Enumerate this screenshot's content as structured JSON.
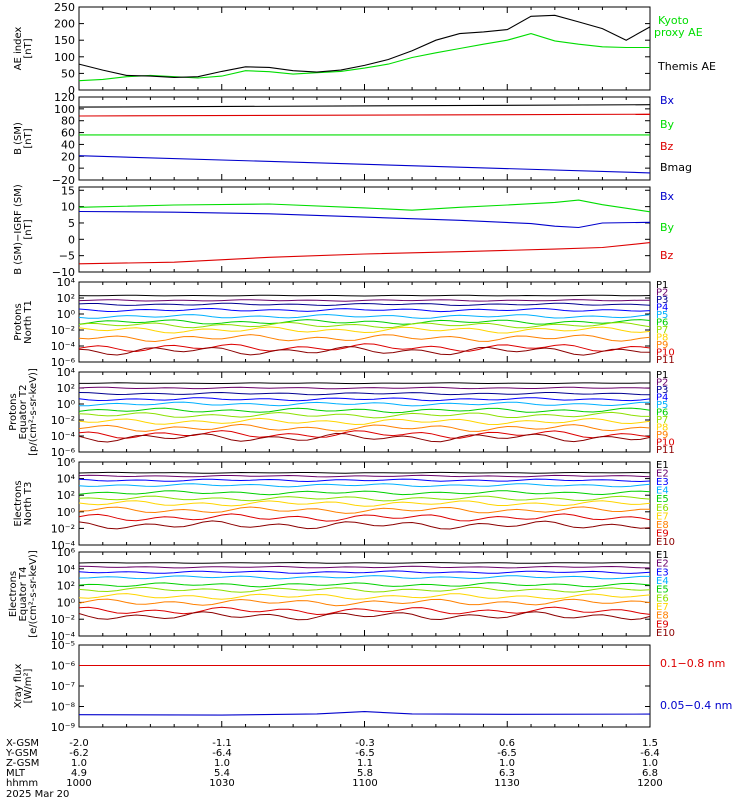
{
  "chart_data": {
    "type": "line",
    "title": "",
    "date_label": "2025 Mar 20",
    "x_time_ticks": [
      "1000",
      "1030",
      "1100",
      "1130",
      "1200"
    ],
    "orbit_rows": [
      {
        "label": "X-GSM",
        "values": [
          "-2.0",
          "-1.1",
          "-0.3",
          "0.6",
          "1.5"
        ]
      },
      {
        "label": "Y-GSM",
        "values": [
          "-6.2",
          "-6.4",
          "-6.5",
          "-6.5",
          "-6.4"
        ]
      },
      {
        "label": "Z-GSM",
        "values": [
          "1.0",
          "1.0",
          "1.1",
          "1.0",
          "1.0"
        ]
      },
      {
        "label": "MLT",
        "values": [
          "4.9",
          "5.4",
          "5.8",
          "6.3",
          "6.8"
        ]
      },
      {
        "label": "hhmm",
        "values": [
          "1000",
          "1030",
          "1100",
          "1130",
          "1200"
        ]
      }
    ],
    "panels": [
      {
        "id": "ae",
        "ylabel": [
          "AE index",
          "[nT]"
        ],
        "scale": "linear",
        "ylim": [
          0,
          250
        ],
        "yticks": [
          "0",
          "50",
          "100",
          "150",
          "200",
          "250"
        ],
        "ytick_values": [
          0,
          50,
          100,
          150,
          200,
          250
        ],
        "series": [
          {
            "name": "Kyoto proxy AE",
            "color": "#00dd00",
            "x": [
              0,
              5,
              10,
              15,
              20,
              25,
              30,
              35,
              40,
              45,
              50,
              55,
              60,
              65,
              70,
              75,
              80,
              85,
              90,
              95,
              100,
              105,
              110,
              115,
              120
            ],
            "y": [
              28,
              32,
              40,
              44,
              40,
              36,
              42,
              58,
              55,
              48,
              52,
              56,
              66,
              78,
              98,
              112,
              125,
              138,
              150,
              170,
              148,
              138,
              130,
              128,
              128
            ]
          },
          {
            "name": "Themis AE",
            "color": "#000000",
            "x": [
              0,
              5,
              10,
              15,
              20,
              25,
              30,
              35,
              40,
              45,
              50,
              55,
              60,
              65,
              70,
              75,
              80,
              85,
              90,
              95,
              100,
              105,
              110,
              115,
              120
            ],
            "y": [
              78,
              60,
              44,
              42,
              38,
              40,
              56,
              70,
              68,
              58,
              54,
              60,
              74,
              92,
              118,
              150,
              170,
              175,
              182,
              222,
              225,
              205,
              185,
              150,
              190
            ]
          }
        ],
        "legend": [
          "Kyoto",
          "proxy AE",
          "Themis AE"
        ]
      },
      {
        "id": "b",
        "ylabel": [
          "B (SM)",
          "[nT]"
        ],
        "scale": "linear",
        "ylim": [
          -20,
          120
        ],
        "yticks": [
          "−20",
          "0",
          "20",
          "40",
          "60",
          "80",
          "100",
          "120"
        ],
        "ytick_values": [
          -20,
          0,
          20,
          40,
          60,
          80,
          100,
          120
        ],
        "series": [
          {
            "name": "Bx",
            "color": "#0000cc",
            "x": [
              0,
              120
            ],
            "y": [
              21,
              -8
            ]
          },
          {
            "name": "By",
            "color": "#00dd00",
            "x": [
              0,
              120
            ],
            "y": [
              56,
              56
            ]
          },
          {
            "name": "Bz",
            "color": "#dd0000",
            "x": [
              0,
              120
            ],
            "y": [
              88,
              91
            ]
          },
          {
            "name": "Bmag",
            "color": "#000000",
            "x": [
              0,
              120
            ],
            "y": [
              103,
              107
            ]
          }
        ]
      },
      {
        "id": "dbigrf",
        "ylabel": [
          "B (SM)−IGRF (SM)",
          "[nT]"
        ],
        "scale": "linear",
        "ylim": [
          -10,
          16
        ],
        "yticks": [
          "−10",
          "−5",
          "0",
          "5",
          "10",
          "15"
        ],
        "ytick_values": [
          -10,
          -5,
          0,
          5,
          10,
          15
        ],
        "series": [
          {
            "name": "Bx",
            "color": "#0000cc",
            "x": [
              0,
              20,
              40,
              60,
              80,
              95,
              100,
              105,
              110,
              120
            ],
            "y": [
              8.5,
              8.3,
              7.8,
              6.8,
              5.8,
              4.8,
              4.0,
              3.6,
              5.0,
              5.2
            ]
          },
          {
            "name": "By",
            "color": "#00dd00",
            "x": [
              0,
              20,
              40,
              60,
              70,
              80,
              90,
              100,
              105,
              110,
              120
            ],
            "y": [
              9.8,
              10.5,
              10.8,
              9.6,
              8.9,
              9.8,
              10.5,
              11.3,
              12.0,
              10.6,
              8.4
            ]
          },
          {
            "name": "Bz",
            "color": "#dd0000",
            "x": [
              0,
              20,
              40,
              60,
              80,
              100,
              110,
              120
            ],
            "y": [
              -7.5,
              -7.0,
              -5.5,
              -4.5,
              -3.8,
              -3.0,
              -2.5,
              -1.0
            ]
          }
        ]
      },
      {
        "id": "p1",
        "ylabel": [
          "Protons",
          "North T1"
        ],
        "scale": "log",
        "ylim": [
          -6,
          4
        ],
        "yticks": [
          "10⁻⁶",
          "10⁻⁴",
          "10⁻²",
          "10⁰",
          "10²",
          "10⁴"
        ],
        "ytick_values": [
          -6,
          -4,
          -2,
          0,
          2,
          4
        ],
        "channels": [
          "P1",
          "P2",
          "P3",
          "P4",
          "P5",
          "P6",
          "P7",
          "P8",
          "P9",
          "P10",
          "P11"
        ],
        "channel_colors": [
          "#000000",
          "#6a006a",
          "#00008f",
          "#0000ff",
          "#00b0ff",
          "#00d000",
          "#8de000",
          "#ffd500",
          "#ff8000",
          "#dd0000",
          "#8b0000"
        ],
        "channel_log_levels": [
          2.3,
          1.7,
          1.2,
          0.5,
          -0.3,
          -1.0,
          -1.4,
          -2.0,
          -3.0,
          -4.2,
          -4.6
        ]
      },
      {
        "id": "p2",
        "ylabel": [
          "Protons",
          "Equator T2",
          "[p/(cm²-s-sr-keV)]"
        ],
        "scale": "log",
        "ylim": [
          -6,
          4
        ],
        "yticks": [
          "10⁻⁶",
          "10⁻⁴",
          "10⁻²",
          "10⁰",
          "10²",
          "10⁴"
        ],
        "ytick_values": [
          -6,
          -4,
          -2,
          0,
          2,
          4
        ],
        "channels": [
          "P1",
          "P2",
          "P3",
          "P4",
          "P5",
          "P6",
          "P7",
          "P8",
          "P9",
          "P10",
          "P11"
        ],
        "channel_colors": [
          "#000000",
          "#6a006a",
          "#00008f",
          "#0000ff",
          "#00b0ff",
          "#00d000",
          "#8de000",
          "#ffd500",
          "#ff8000",
          "#dd0000",
          "#8b0000"
        ],
        "channel_log_levels": [
          2.6,
          2.0,
          1.3,
          0.6,
          0.0,
          -0.8,
          -1.4,
          -2.2,
          -3.0,
          -3.8,
          -4.2
        ]
      },
      {
        "id": "e3",
        "ylabel": [
          "Electrons",
          "North T3"
        ],
        "scale": "log",
        "ylim": [
          -4,
          6
        ],
        "yticks": [
          "10⁻⁴",
          "10⁻²",
          "10⁰",
          "10²",
          "10⁴",
          "10⁶"
        ],
        "ytick_values": [
          -4,
          -2,
          0,
          2,
          4,
          6
        ],
        "channels": [
          "E1",
          "E2",
          "E3",
          "E4",
          "E5",
          "E6",
          "E7",
          "E8",
          "E9",
          "E10"
        ],
        "channel_colors": [
          "#000000",
          "#6a006a",
          "#0000ff",
          "#00b0ff",
          "#00d000",
          "#8de000",
          "#ffd500",
          "#ff8000",
          "#dd0000",
          "#8b0000"
        ],
        "channel_log_levels": [
          4.7,
          4.3,
          3.8,
          3.2,
          2.3,
          1.6,
          1.0,
          0.2,
          -0.7,
          -1.6
        ]
      },
      {
        "id": "e4",
        "ylabel": [
          "Electrons",
          "Equator T4",
          "[e/(cm²-s-sr-keV)]"
        ],
        "scale": "log",
        "ylim": [
          -4,
          6
        ],
        "yticks": [
          "10⁻⁴",
          "10⁻²",
          "10⁰",
          "10²",
          "10⁴",
          "10⁶"
        ],
        "ytick_values": [
          -4,
          -2,
          0,
          2,
          4,
          6
        ],
        "channels": [
          "E1",
          "E2",
          "E3",
          "E4",
          "E5",
          "E6",
          "E7",
          "E8",
          "E9",
          "E10"
        ],
        "channel_colors": [
          "#000000",
          "#6a006a",
          "#0000ff",
          "#00b0ff",
          "#00d000",
          "#8de000",
          "#ffd500",
          "#ff8000",
          "#dd0000",
          "#8b0000"
        ],
        "channel_log_levels": [
          4.7,
          4.2,
          3.6,
          3.0,
          2.1,
          1.5,
          0.7,
          0.0,
          -1.0,
          -1.6
        ]
      },
      {
        "id": "xray",
        "ylabel": [
          "Xray flux",
          "[W/m²]"
        ],
        "scale": "log",
        "ylim": [
          -9,
          -5
        ],
        "yticks": [
          "10⁻⁹",
          "10⁻⁸",
          "10⁻⁷",
          "10⁻⁶",
          "10⁻⁵"
        ],
        "ytick_values": [
          -9,
          -8,
          -7,
          -6,
          -5
        ],
        "series": [
          {
            "name": "0.1−0.8 nm",
            "color": "#dd0000",
            "x": [
              0,
              120
            ],
            "y": [
              -6.0,
              -6.0
            ]
          },
          {
            "name": "0.05−0.4 nm",
            "color": "#0000cc",
            "x": [
              0,
              30,
              50,
              60,
              70,
              90,
              120
            ],
            "y": [
              -8.4,
              -8.42,
              -8.36,
              -8.25,
              -8.36,
              -8.38,
              -8.37
            ]
          }
        ]
      }
    ]
  }
}
